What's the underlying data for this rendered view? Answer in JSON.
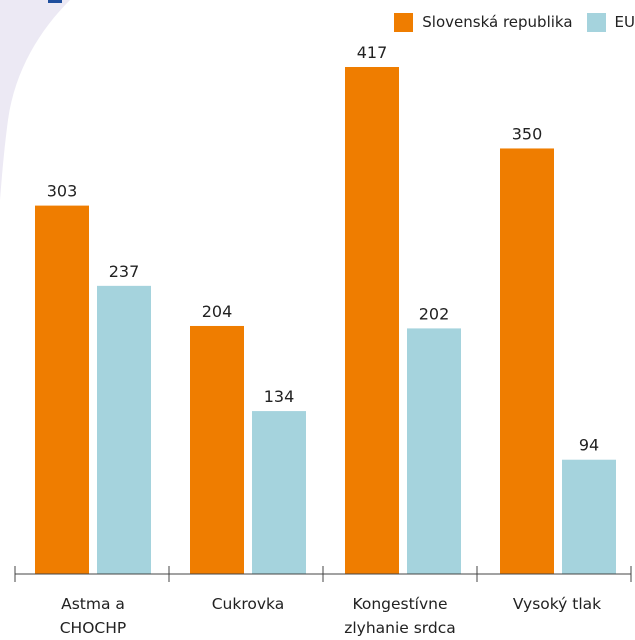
{
  "chart_data": {
    "type": "bar",
    "categories": [
      [
        "Astma a",
        "CHOCHP"
      ],
      [
        "Cukrovka"
      ],
      [
        "Kongestívne",
        "zlyhanie srdca"
      ],
      [
        "Vysoký tlak"
      ]
    ],
    "series": [
      {
        "name": "Slovenská republika",
        "color": "#ef7d00",
        "values": [
          303,
          204,
          417,
          350
        ]
      },
      {
        "name": "EU",
        "color": "#a5d3dd",
        "values": [
          237,
          134,
          202,
          94
        ]
      }
    ],
    "ylim": [
      0,
      450
    ],
    "grid": false,
    "legend": "top-right",
    "title": "",
    "xlabel": "",
    "ylabel": ""
  },
  "colors": {
    "axis": "#444444",
    "text": "#222222",
    "decoration": "#ece9f4",
    "accent": "#1f4e9d"
  }
}
